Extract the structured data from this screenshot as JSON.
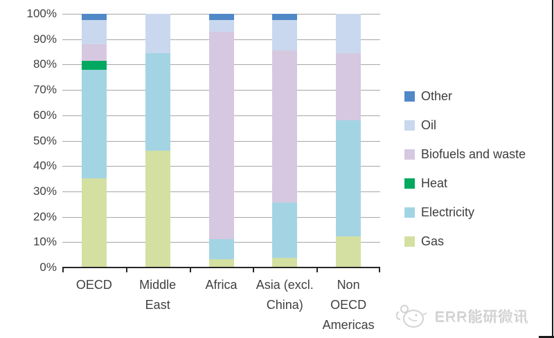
{
  "chart_data": {
    "type": "bar",
    "subtype": "stacked-100-percent",
    "title": "",
    "xlabel": "",
    "ylabel": "",
    "ylim": [
      0,
      100
    ],
    "grid": true,
    "legend_position": "right",
    "y_ticks": [
      "100%",
      "90%",
      "80%",
      "70%",
      "60%",
      "50%",
      "40%",
      "30%",
      "20%",
      "10%",
      "0%"
    ],
    "categories": [
      "OECD",
      "Middle East",
      "Africa",
      "Asia (excl. China)",
      "Non OECD Americas"
    ],
    "category_lines": [
      [
        "OECD"
      ],
      [
        "Middle",
        "East"
      ],
      [
        "Africa"
      ],
      [
        "Asia (excl.",
        "China)"
      ],
      [
        "Non",
        "OECD",
        "Americas"
      ]
    ],
    "series": [
      {
        "name": "Gas",
        "color": "#d3e0a1",
        "values": [
          35,
          46,
          3,
          3.5,
          12
        ]
      },
      {
        "name": "Electricity",
        "color": "#a3d4e4",
        "values": [
          43,
          38.5,
          8,
          22,
          46
        ]
      },
      {
        "name": "Heat",
        "color": "#00a95f",
        "values": [
          3.5,
          0,
          0,
          0,
          0
        ]
      },
      {
        "name": "Biofuels and waste",
        "color": "#d6c8e0",
        "values": [
          6.5,
          0,
          82,
          60,
          26.5
        ]
      },
      {
        "name": "Oil",
        "color": "#c9d8ee",
        "values": [
          9.5,
          15.5,
          4.5,
          12,
          15.5
        ]
      },
      {
        "name": "Other",
        "color": "#5189c8",
        "values": [
          2.5,
          0,
          2.5,
          2.5,
          0
        ]
      }
    ],
    "legend_order": [
      "Other",
      "Oil",
      "Biofuels and waste",
      "Heat",
      "Electricity",
      "Gas"
    ]
  },
  "colors": {
    "gridline": "#a6a6a6",
    "axis": "#262626",
    "label_text": "#404040",
    "legend_text": "#3d3d3d",
    "watermark": "#d5d5d5"
  },
  "watermark": {
    "text": "ERR能研微讯",
    "logo": "err-bird-logo"
  }
}
